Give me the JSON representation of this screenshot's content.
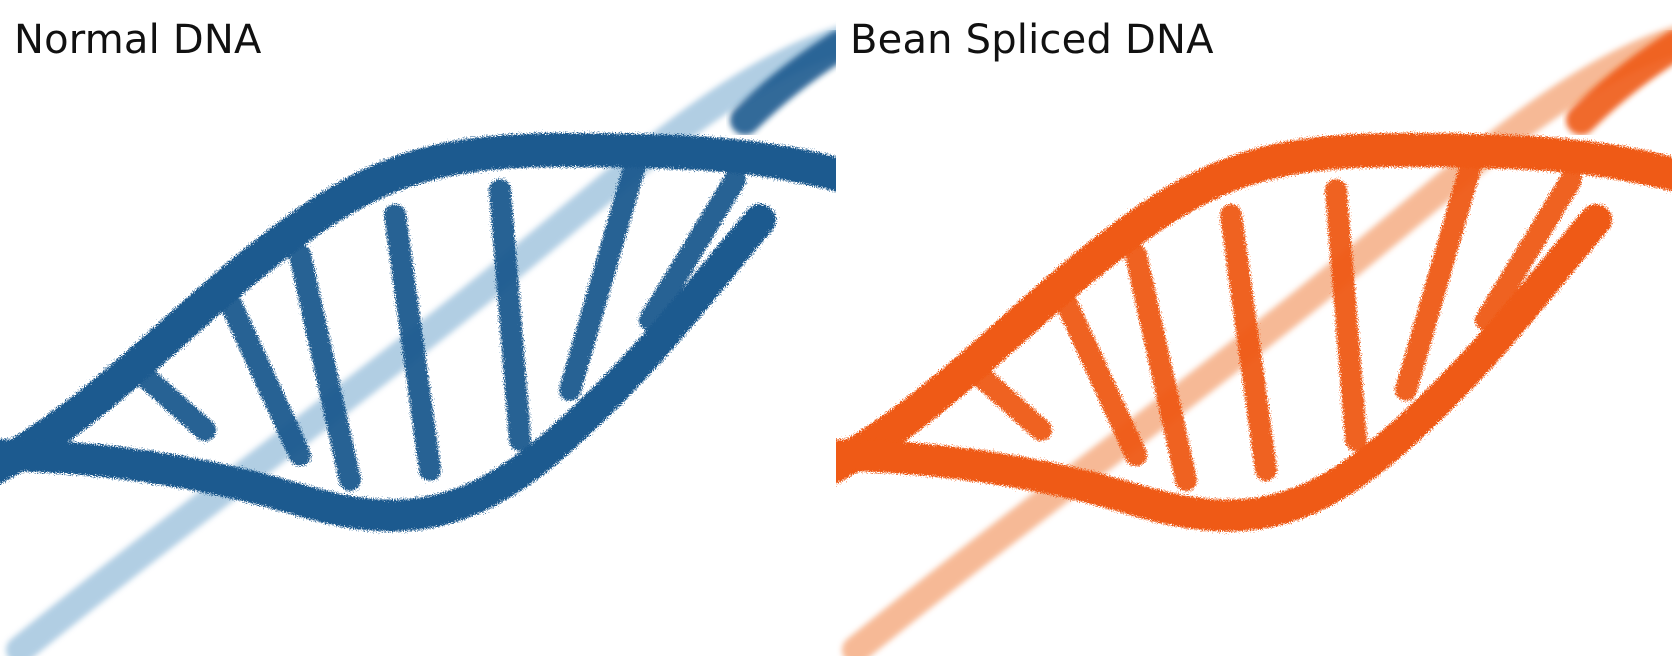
{
  "panels": [
    {
      "title": "Normal DNA",
      "color": "#1f5a8f",
      "light": "#a9c9e1"
    },
    {
      "title": "Bean Spliced DNA",
      "color": "#ef5a12",
      "light": "#f6b28b"
    }
  ]
}
